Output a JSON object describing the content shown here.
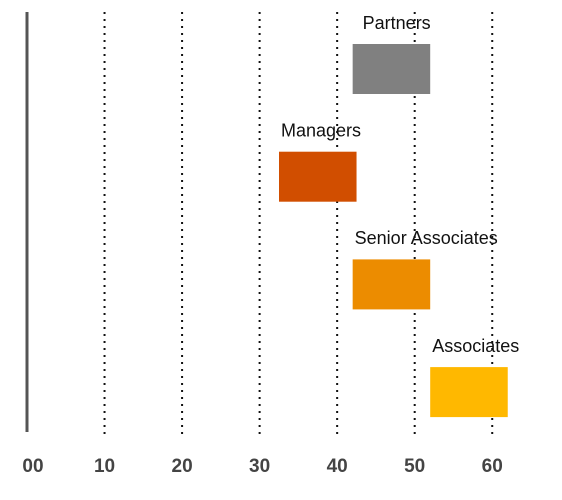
{
  "chart_data": {
    "type": "range-bar",
    "categories": [
      "Partners",
      "Managers",
      "Senior Associates",
      "Associates"
    ],
    "values": [
      [
        42,
        52
      ],
      [
        32.5,
        42.5
      ],
      [
        42,
        52
      ],
      [
        52,
        62
      ]
    ],
    "colors": [
      "#808080",
      "#d14e00",
      "#ec8c00",
      "#ffb800"
    ],
    "xlim": [
      0,
      65
    ],
    "xticks": [
      {
        "value": 0,
        "label": "00"
      },
      10,
      20,
      30,
      40,
      50,
      60
    ],
    "grid": true
  }
}
